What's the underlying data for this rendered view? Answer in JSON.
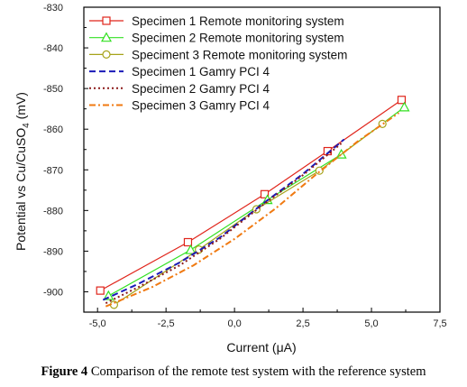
{
  "caption": {
    "label": "Figure 4",
    "text": " Comparison of the remote test system with the reference system"
  },
  "chart_data": {
    "type": "line",
    "xlabel": "Current",
    "xlabel_unit": "(μA)",
    "ylabel": "Potential vs Cu/CuSO",
    "ylabel_sub": "4",
    "ylabel_unit": " (mV)",
    "xlim": [
      -5.5,
      7.5
    ],
    "ylim": [
      -905,
      -830
    ],
    "xticks": [
      -5.0,
      -2.5,
      0.0,
      2.5,
      5.0,
      7.5
    ],
    "xtick_labels": [
      "-5,0",
      "-2,5",
      "0,0",
      "2,5",
      "5,0",
      "7,5"
    ],
    "yticks": [
      -830,
      -840,
      -850,
      -860,
      -870,
      -880,
      -890,
      -900
    ],
    "ytick_labels": [
      "-830",
      "-840",
      "-850",
      "-860",
      "-870",
      "-880",
      "-890",
      "-900"
    ],
    "grid": false,
    "legend_position": "top-left",
    "series": [
      {
        "name": "Specimen 1 Remote monitoring system",
        "color": "#e0251b",
        "marker": "square",
        "dash": "solid",
        "x": [
          -4.9,
          -1.7,
          1.1,
          3.4,
          6.1
        ],
        "y": [
          -899.7,
          -887.8,
          -876.0,
          -865.4,
          -852.8
        ]
      },
      {
        "name": "Specimen 2 Remote monitoring system",
        "color": "#33e022",
        "marker": "triangle",
        "dash": "solid",
        "x": [
          -4.6,
          -1.6,
          1.2,
          3.9,
          6.2
        ],
        "y": [
          -901.0,
          -889.7,
          -877.4,
          -866.2,
          -854.6
        ]
      },
      {
        "name": "Speciment 3 Remote monitoring system",
        "color": "#a6a31a",
        "marker": "circle",
        "dash": "solid",
        "x": [
          -4.4,
          -1.3,
          0.8,
          3.1,
          5.4
        ],
        "y": [
          -903.2,
          -889.6,
          -879.7,
          -870.2,
          -858.7
        ]
      },
      {
        "name": "Specimen 1 Gamry PCI 4",
        "color": "#1a1ab8",
        "marker": "none",
        "dash": "dash",
        "x": [
          -4.8,
          -3.5,
          -2.0,
          -0.5,
          1.0,
          2.5,
          4.0
        ],
        "y": [
          -902.0,
          -898.0,
          -892.8,
          -886.5,
          -878.5,
          -871.0,
          -862.5
        ]
      },
      {
        "name": "Specimen 2 Gamry PCI 4",
        "color": "#8c1a1a",
        "marker": "none",
        "dash": "dot",
        "x": [
          -4.7,
          -3.5,
          -2.0,
          -0.5,
          1.0,
          2.5,
          3.9
        ],
        "y": [
          -902.8,
          -898.8,
          -893.5,
          -886.8,
          -878.8,
          -871.3,
          -863.5
        ]
      },
      {
        "name": "Specimen 3 Gamry PCI 4",
        "color": "#f07a12",
        "marker": "none",
        "dash": "dashdot",
        "x": [
          -4.7,
          -3.0,
          -1.5,
          0.0,
          1.5,
          3.0,
          4.5,
          6.0
        ],
        "y": [
          -903.6,
          -898.8,
          -893.5,
          -887.0,
          -879.5,
          -871.0,
          -863.0,
          -856.0
        ]
      }
    ]
  }
}
